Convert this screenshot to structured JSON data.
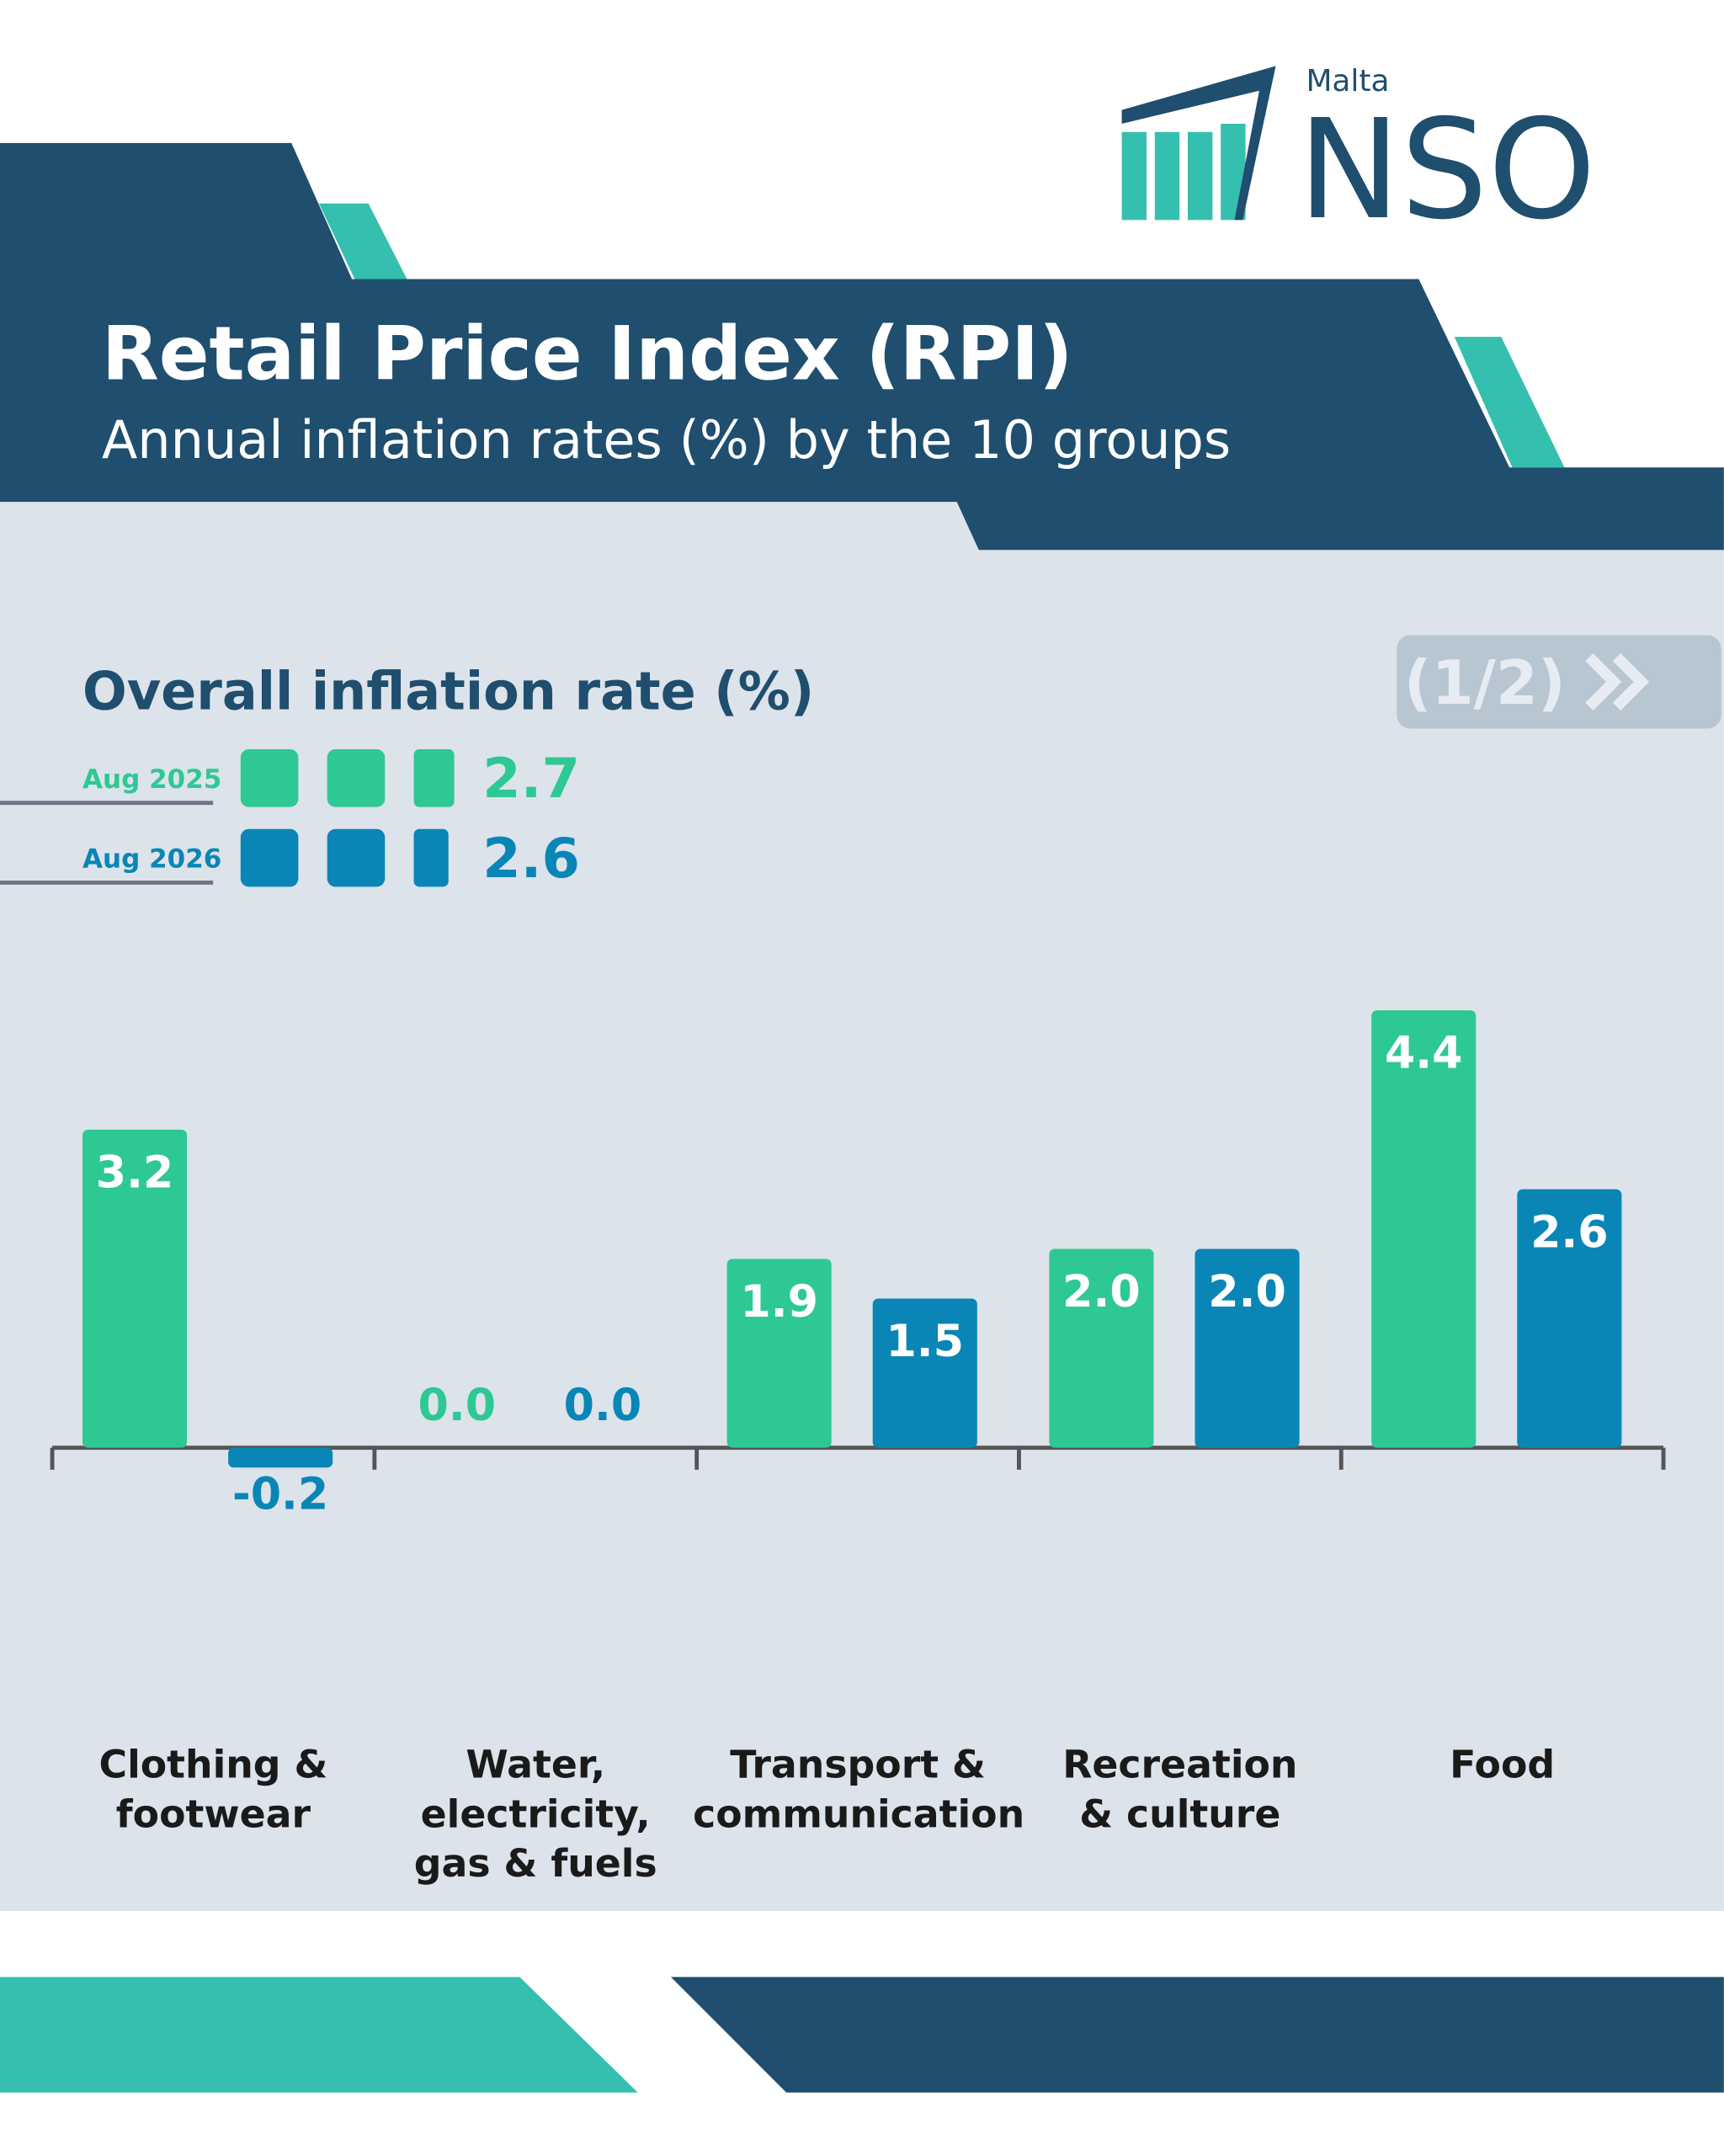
{
  "logo": {
    "top": "Malta",
    "name": "NSO"
  },
  "header": {
    "title": "Retail Price Index (RPI)",
    "subtitle": "Annual inflation rates (%) by the 10 groups"
  },
  "page_indicator": "(1/2)",
  "chart_data": {
    "type": "bar",
    "title": "Overall inflation rate (%)",
    "categories": [
      "Clothing & footwear",
      "Water, electricity, gas & fuels",
      "Transport & communication",
      "Recreation & culture",
      "Food"
    ],
    "series": [
      {
        "name": "Aug 2025",
        "color": "#2ec894",
        "overall": 2.7,
        "values": [
          3.2,
          0.0,
          1.9,
          2.0,
          4.4
        ],
        "value_labels": [
          "3.2",
          "0.0",
          "1.9",
          "2.0",
          "4.4"
        ]
      },
      {
        "name": "Aug 2026",
        "color": "#0a86b6",
        "overall": 2.6,
        "values": [
          -0.2,
          0.0,
          1.5,
          2.0,
          2.6
        ],
        "value_labels": [
          "-0.2",
          "0.0",
          "1.5",
          "2.0",
          "2.6"
        ]
      }
    ]
  }
}
